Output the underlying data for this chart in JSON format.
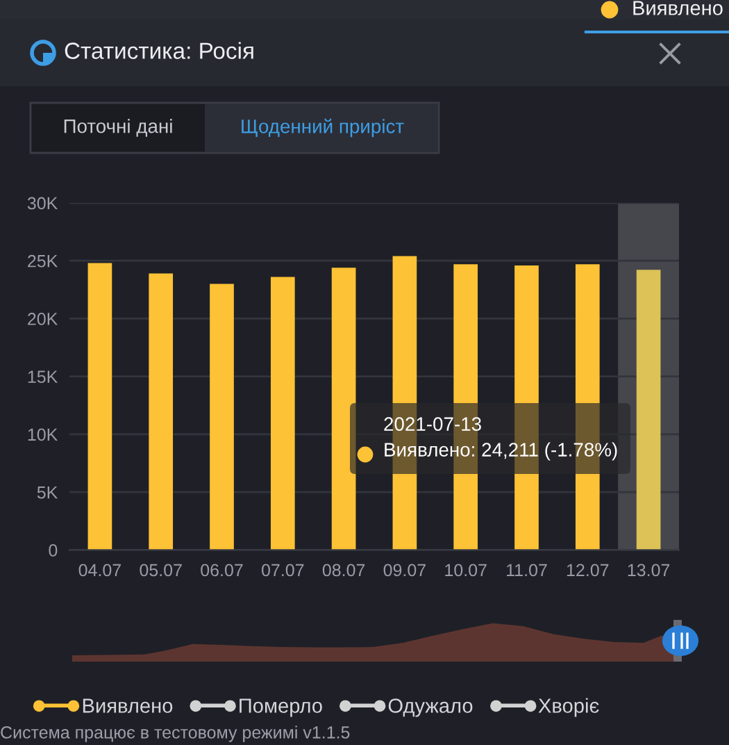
{
  "chart_data": {
    "type": "bar",
    "title": "Статистика: Росія",
    "categories": [
      "04.07",
      "05.07",
      "06.07",
      "07.07",
      "08.07",
      "09.07",
      "10.07",
      "11.07",
      "12.07",
      "13.07"
    ],
    "series": [
      {
        "name": "Виявлено",
        "color": "#fdc235",
        "colors": [
          "#fdc235",
          "#fdc235",
          "#fdc235",
          "#fdc235",
          "#fdc235",
          "#fdc235",
          "#fdc235",
          "#fdc235",
          "#fdc235",
          "#dcc257"
        ],
        "values": [
          24800,
          23900,
          23000,
          23600,
          24400,
          25400,
          24700,
          24600,
          24700,
          24211
        ]
      },
      {
        "name": "Померло",
        "color": "#d2d2d2",
        "values": [
          null,
          null,
          null,
          null,
          null,
          null,
          null,
          null,
          null,
          null
        ]
      },
      {
        "name": "Одужало",
        "color": "#d2d2d2",
        "values": [
          null,
          null,
          null,
          null,
          null,
          null,
          null,
          null,
          null,
          null
        ]
      },
      {
        "name": "Хворіє",
        "color": "#d2d2d2",
        "values": [
          null,
          null,
          null,
          null,
          null,
          null,
          null,
          null,
          null,
          null
        ]
      }
    ],
    "ylim": [
      0,
      30000
    ],
    "yticks": [
      0,
      {
        "value": 5000,
        "label": "5K"
      },
      {
        "value": 10000,
        "label": "10K"
      },
      {
        "value": 15000,
        "label": "15K"
      },
      {
        "value": 20000,
        "label": "20K"
      },
      {
        "value": 25000,
        "label": "25K"
      },
      {
        "value": 30000,
        "label": "30K"
      }
    ],
    "grid": "y",
    "legend": "bottom",
    "bands": [
      {
        "axis": "x",
        "from": "13.07",
        "to": "13.07",
        "color": "#46474c"
      }
    ],
    "annotations": [
      "Виявлено",
      "Поточні дані",
      "Щоденний приріст",
      "2021-07-13\nВиявлено: 24,211 (-1.78%)",
      "Система працює в тестовому режимі v1.1.5"
    ]
  }
}
